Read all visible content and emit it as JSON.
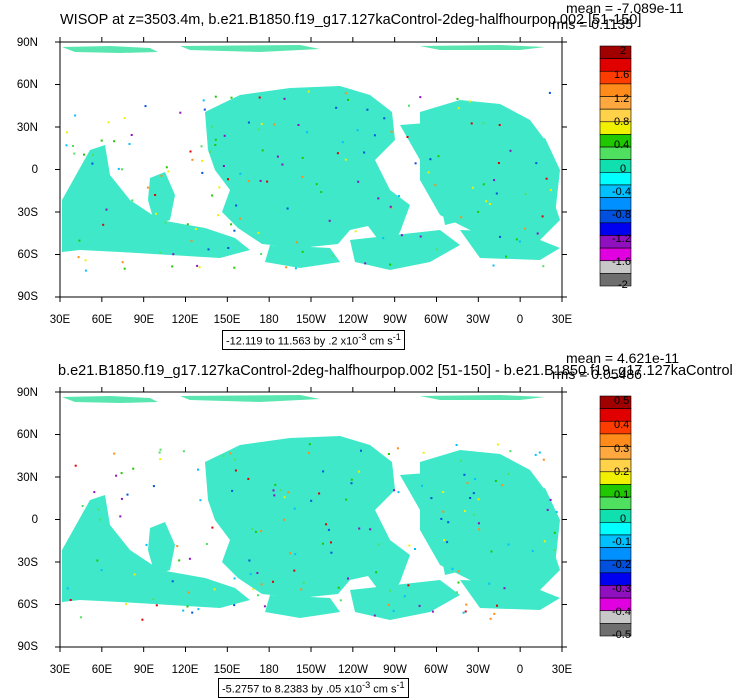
{
  "panels": [
    {
      "title": "WISOP at z=3503.4m, b.e21.B1850.f19_g17.127kaControl-2deg-halfhourpop.002 [51-150]",
      "mean": "mean = -7.089e-11",
      "rms": "rms = 0.1135",
      "range_text": "-12.119 to 11.563 by .2 x10",
      "range_exp": "-3",
      "range_unit": " cm s",
      "range_unit_exp": "-1",
      "colorbar_labels": [
        "2",
        "1.6",
        "1.2",
        "0.8",
        "0.4",
        "0",
        "-0.4",
        "-0.8",
        "-1.2",
        "-1.6",
        "-2"
      ]
    },
    {
      "title": "b.e21.B1850.f19_g17.127kaControl-2deg-halfhourpop.002 [51-150] - b.e21.B1850.f19_g17.127kaControl",
      "mean": "mean = 4.621e-11",
      "rms": "rms = 0.05486",
      "range_text": "-5.2757 to 8.2383 by .05 x10",
      "range_exp": "-3",
      "range_unit": " cm s",
      "range_unit_exp": "-1",
      "colorbar_labels": [
        "0.5",
        "0.4",
        "0.3",
        "0.2",
        "0.1",
        "0",
        "-0.1",
        "-0.2",
        "-0.3",
        "-0.4",
        "-0.5"
      ]
    }
  ],
  "lat_labels": [
    "90N",
    "60N",
    "30N",
    "0",
    "30S",
    "60S",
    "90S"
  ],
  "lon_labels": [
    "30E",
    "60E",
    "90E",
    "120E",
    "150E",
    "180",
    "150W",
    "120W",
    "90W",
    "60W",
    "30W",
    "0",
    "30E"
  ],
  "colorbar_colors": [
    "#a00000",
    "#e00000",
    "#ff3c00",
    "#ff8c1a",
    "#ffa840",
    "#ffd24a",
    "#f0f000",
    "#20c800",
    "#50e060",
    "#10e0b0",
    "#00ffff",
    "#00c0ff",
    "#0090ff",
    "#0050e0",
    "#0000f0",
    "#9010c0",
    "#e000e0",
    "#c8c8c8",
    "#6e6e6e"
  ]
}
